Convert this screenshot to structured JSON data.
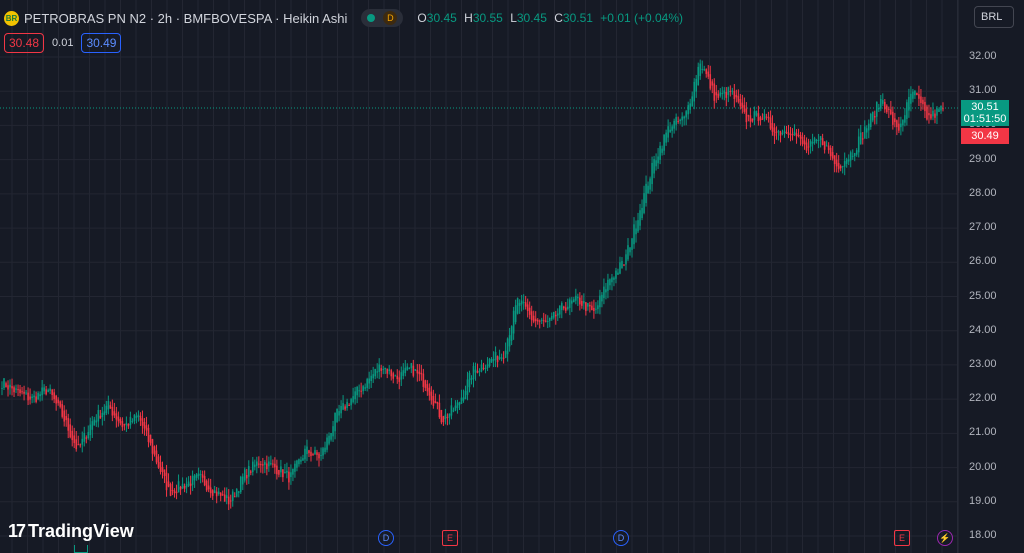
{
  "header": {
    "logo_text": "BR",
    "title": "PETROBRAS PN N2 · 2h · BMFBOVESPA · Heikin Ashi",
    "delay_badge": "D",
    "ohlc": {
      "o_label": "O",
      "o": "30.45",
      "h_label": "H",
      "h": "30.55",
      "l_label": "L",
      "l": "30.45",
      "c_label": "C",
      "c": "30.51",
      "change": "+0.01 (+0.04%)"
    }
  },
  "trade": {
    "sell": "30.48",
    "spread": "0.01",
    "buy": "30.49"
  },
  "currency": "BRL",
  "price_axis": {
    "ticks": [
      "32.00",
      "31.00",
      "30.00",
      "29.00",
      "28.00",
      "27.00",
      "26.00",
      "25.00",
      "24.00",
      "23.00",
      "22.00",
      "21.00",
      "20.00",
      "19.00",
      "18.00"
    ],
    "last_price": "30.51",
    "countdown": "01:51:50",
    "bid_price": "30.49"
  },
  "events": {
    "dividend_label": "D",
    "earnings_label": "E",
    "bolt_label": "⚡"
  },
  "brand": {
    "mark": "17",
    "name": "TradingView"
  },
  "colors": {
    "up": "#089981",
    "down": "#f23645",
    "background": "#161a25",
    "grid": "#232632"
  },
  "chart_data": {
    "type": "candlestick",
    "style": "Heikin Ashi",
    "ylim": [
      18,
      32.2
    ],
    "anchors": [
      [
        22.5,
        22.2,
        22.0,
        22.3,
        21.5,
        20.5,
        21.4,
        21.8,
        21.2,
        21.5,
        20.4,
        19.3,
        19.5,
        19.7,
        19.3,
        19.0,
        19.8,
        20.2,
        20.0,
        19.7,
        20.5,
        20.3,
        21.5,
        22.0,
        22.5,
        23.0,
        22.6,
        22.9,
        22.4,
        21.4,
        21.8,
        22.8,
        23.1,
        23.3,
        24.9,
        24.3,
        24.2,
        24.7,
        24.9,
        24.5,
        25.5,
        26.0,
        27.5,
        29.0,
        30.0,
        30.2,
        31.9,
        30.8,
        31.0,
        30.2,
        30.3,
        29.8,
        29.9,
        29.3,
        29.6,
        28.8,
        29.2,
        30.0,
        30.8,
        29.8,
        31.0,
        30.2,
        30.5
      ]
    ]
  }
}
